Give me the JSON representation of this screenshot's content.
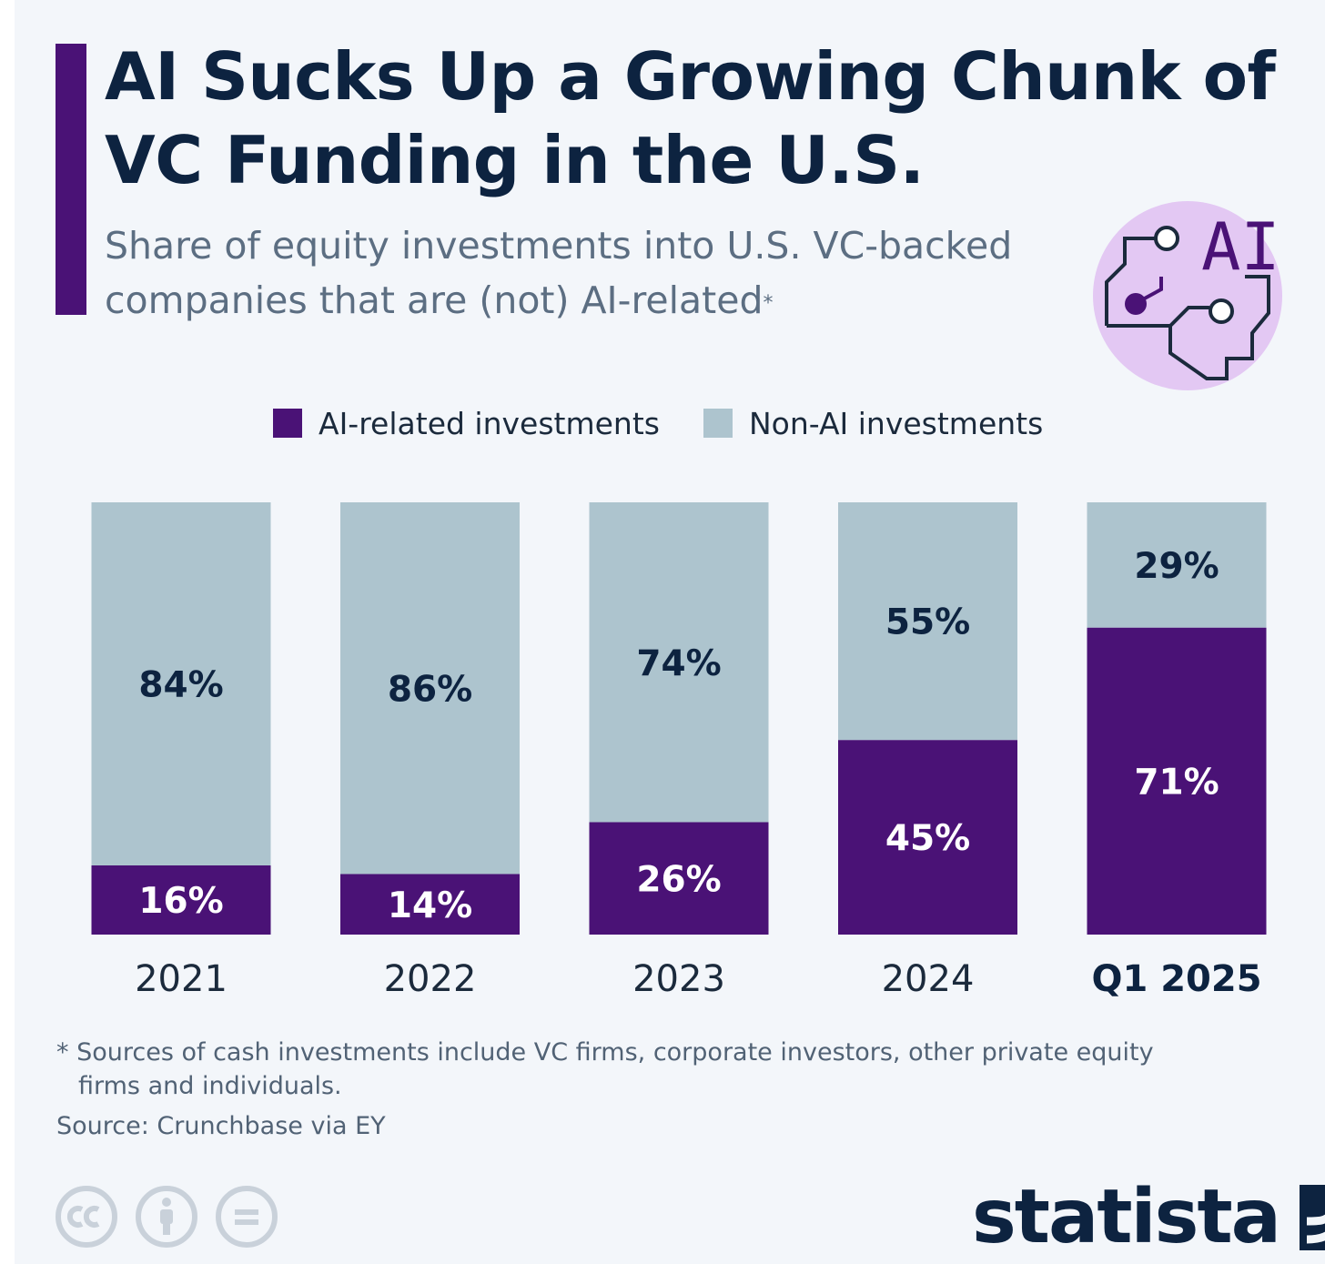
{
  "title": "AI Sucks Up a Growing Chunk of VC Funding in the U.S.",
  "subtitle": "Share of equity investments into U.S. VC-backed companies that are (not) AI-related",
  "subtitle_mark": "*",
  "badge_label": "AI",
  "colors": {
    "ai": "#4a1276",
    "non_ai": "#adc4ce",
    "accent": "#4a1276",
    "title": "#0d2340"
  },
  "legend": [
    {
      "label": "AI-related investments",
      "color": "#4a1276"
    },
    {
      "label": "Non-AI investments",
      "color": "#adc4ce"
    }
  ],
  "chart_data": {
    "type": "bar",
    "stacked": true,
    "title": "AI Sucks Up a Growing Chunk of VC Funding in the U.S.",
    "xlabel": "",
    "ylabel": "",
    "ylim": [
      0,
      100
    ],
    "categories": [
      "2021",
      "2022",
      "2023",
      "2024",
      "Q1 2025"
    ],
    "highlight_category": "Q1 2025",
    "series": [
      {
        "name": "AI-related investments",
        "values": [
          16,
          14,
          26,
          45,
          71
        ],
        "labels": [
          "16%",
          "14%",
          "26%",
          "45%",
          "71%"
        ]
      },
      {
        "name": "Non-AI investments",
        "values": [
          84,
          86,
          74,
          55,
          29
        ],
        "labels": [
          "84%",
          "86%",
          "74%",
          "55%",
          "29%"
        ]
      }
    ],
    "legend_position": "top"
  },
  "footnote_line1": "* Sources of cash investments include VC firms, corporate investors, other private equity",
  "footnote_line2": "firms and individuals.",
  "source": "Source: Crunchbase via EY",
  "brand": "statista"
}
